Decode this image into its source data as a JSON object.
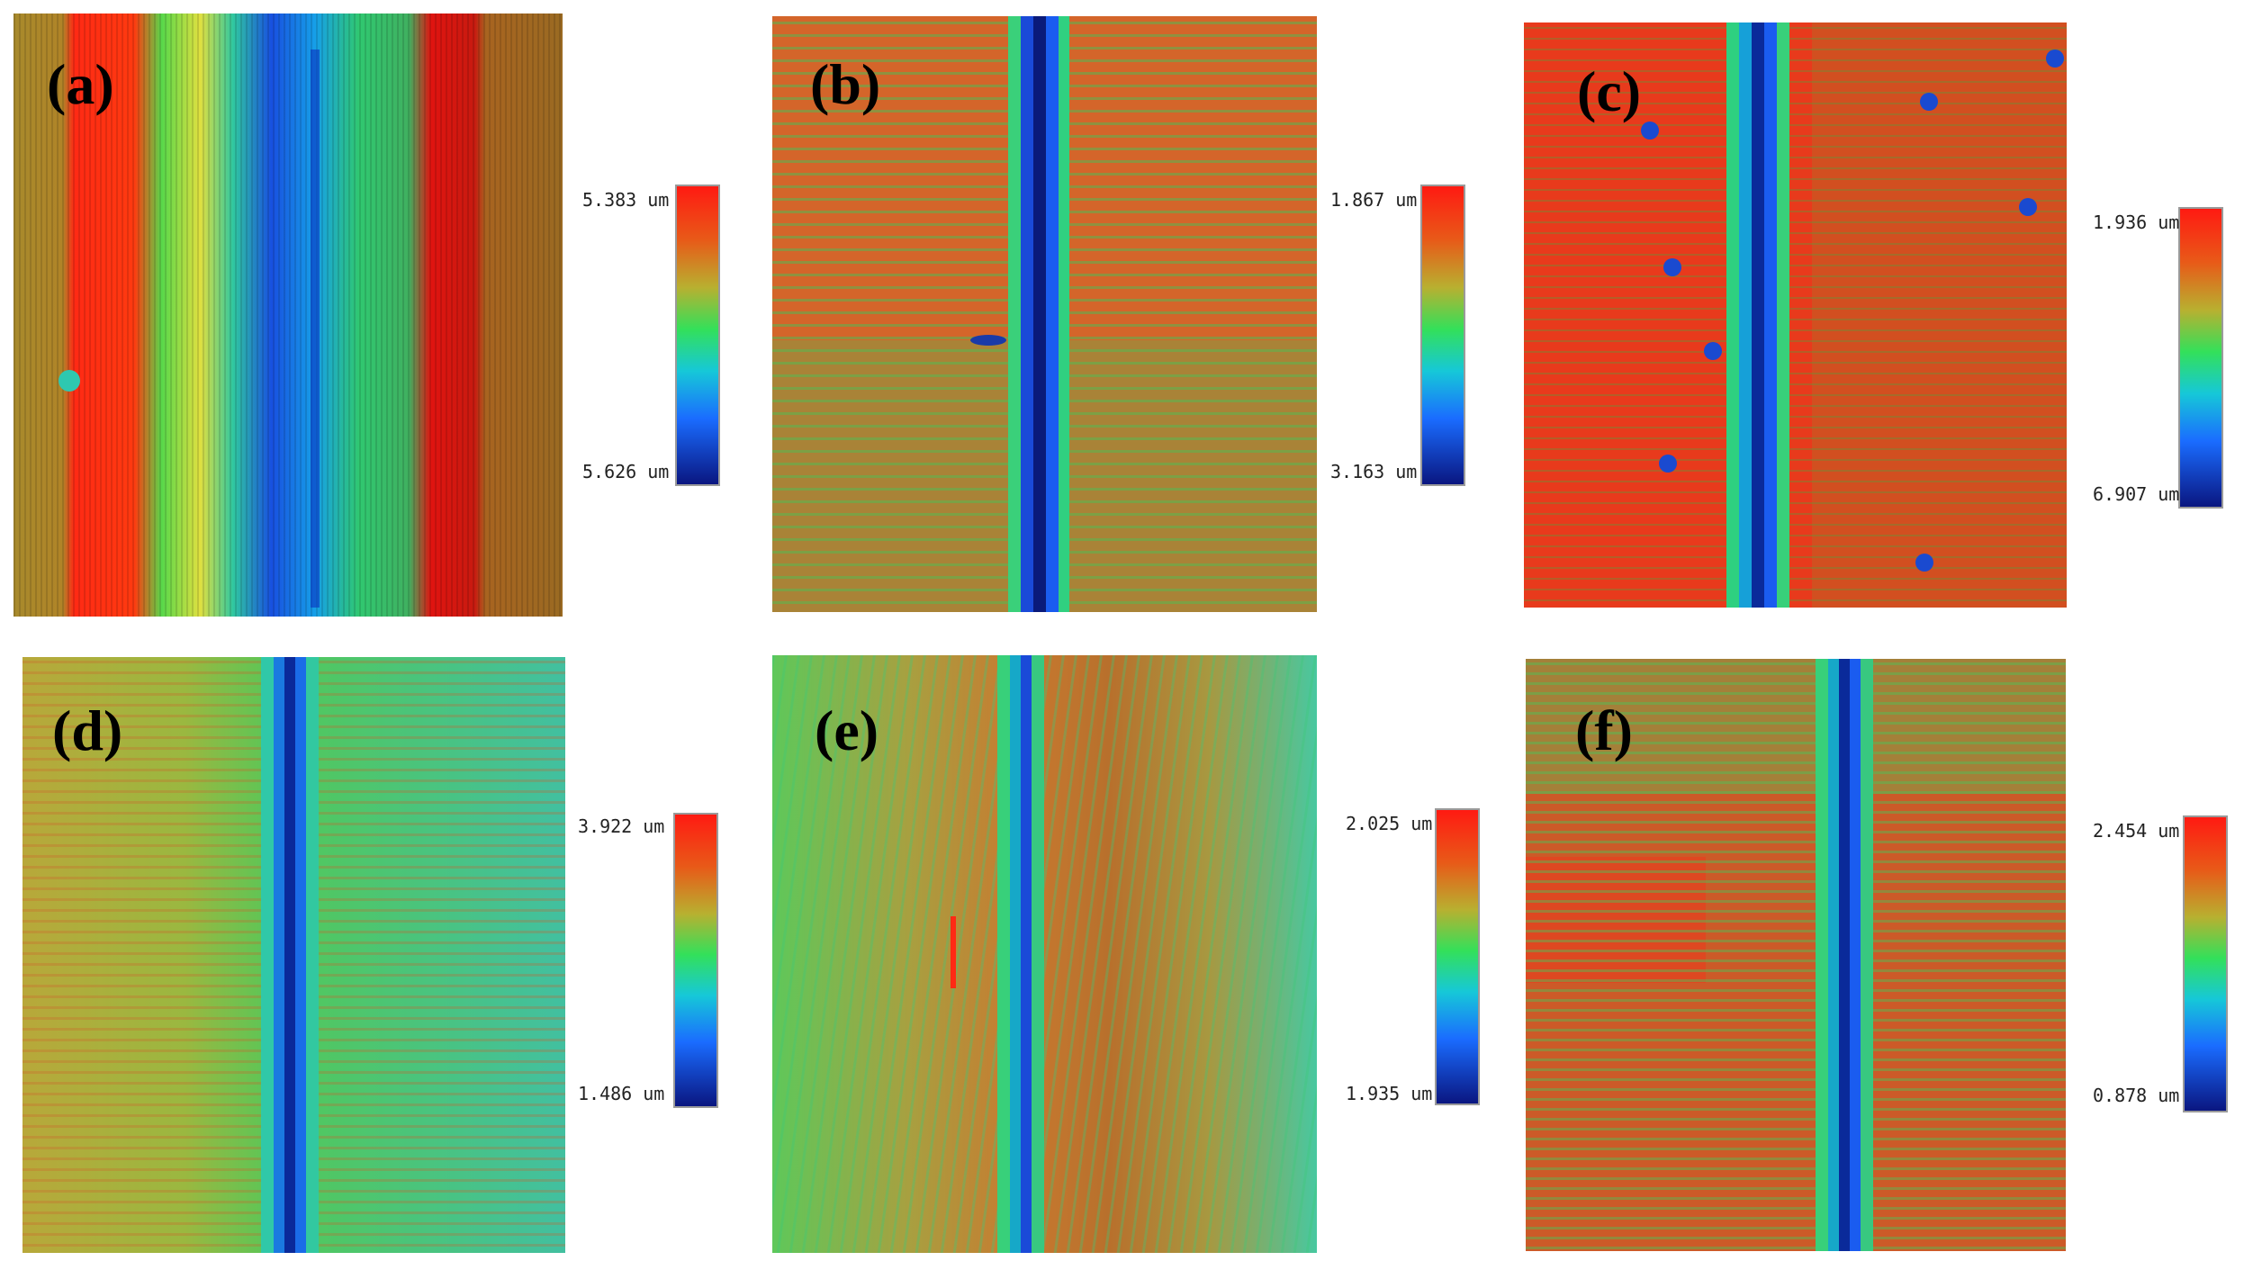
{
  "colormap": [
    "#0a1a8c",
    "#1a5cff",
    "#16c8e0",
    "#2ee06a",
    "#a8d84a",
    "#d68a1e",
    "#ff2a1a"
  ],
  "panels": [
    {
      "id": "a",
      "label": "(a)",
      "scale_top": "5.383 um",
      "scale_bottom": "5.626 um",
      "theme": "red-green-blue wide wear track"
    },
    {
      "id": "b",
      "label": "(b)",
      "scale_top": "1.867 um",
      "scale_bottom": "3.163 um",
      "theme": "orange with narrow groove"
    },
    {
      "id": "c",
      "label": "(c)",
      "scale_top": "1.936 um",
      "scale_bottom": "6.907 um",
      "theme": "red with pits and narrow groove"
    },
    {
      "id": "d",
      "label": "(d)",
      "scale_top": "3.922 um",
      "scale_bottom": "1.486 um",
      "theme": "green with groove"
    },
    {
      "id": "e",
      "label": "(e)",
      "scale_top": "2.025 um",
      "scale_bottom": "1.935 um",
      "theme": "green-orange diagonal streaks"
    },
    {
      "id": "f",
      "label": "(f)",
      "scale_top": "2.454 um",
      "scale_bottom": "0.878 um",
      "theme": "orange-green horizontal streaks"
    }
  ]
}
